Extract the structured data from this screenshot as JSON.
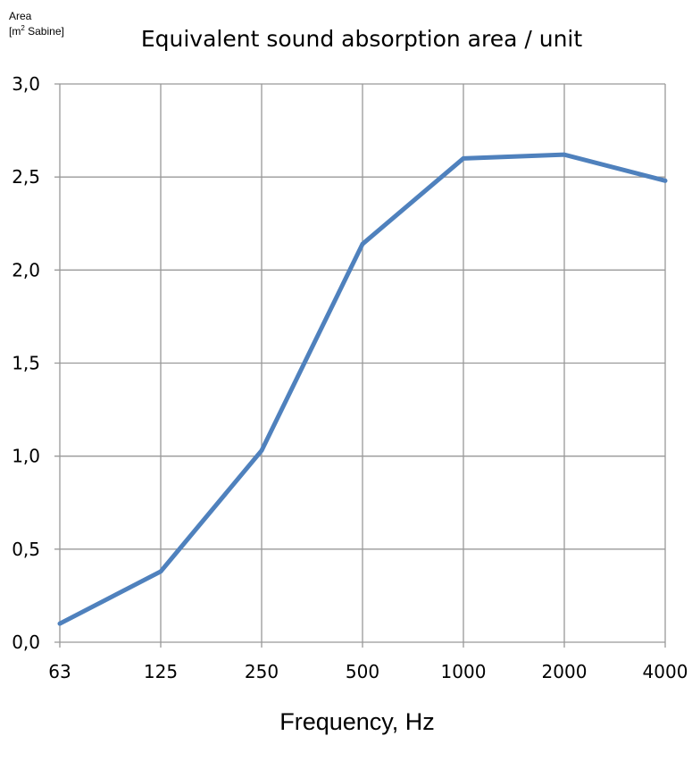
{
  "chart_data": {
    "type": "line",
    "title": "Equivalent sound absorption area / unit",
    "ylabel_line1": "Area",
    "ylabel_line2_prefix": "[m",
    "ylabel_line2_sup": "2",
    "ylabel_line2_suffix": " Sabine]",
    "xlabel": "Frequency, Hz",
    "categories": [
      "63",
      "125",
      "250",
      "500",
      "1000",
      "2000",
      "4000"
    ],
    "values": [
      0.1,
      0.38,
      1.03,
      2.14,
      2.6,
      2.62,
      2.48
    ],
    "ylim": [
      0,
      3.0
    ],
    "yticks": [
      0.0,
      0.5,
      1.0,
      1.5,
      2.0,
      2.5,
      3.0
    ],
    "ytick_labels": [
      "0,0",
      "0,5",
      "1,0",
      "1,5",
      "2,0",
      "2,5",
      "3,0"
    ],
    "grid": true,
    "line_color": "#4f81bd",
    "grid_color": "#999999"
  }
}
